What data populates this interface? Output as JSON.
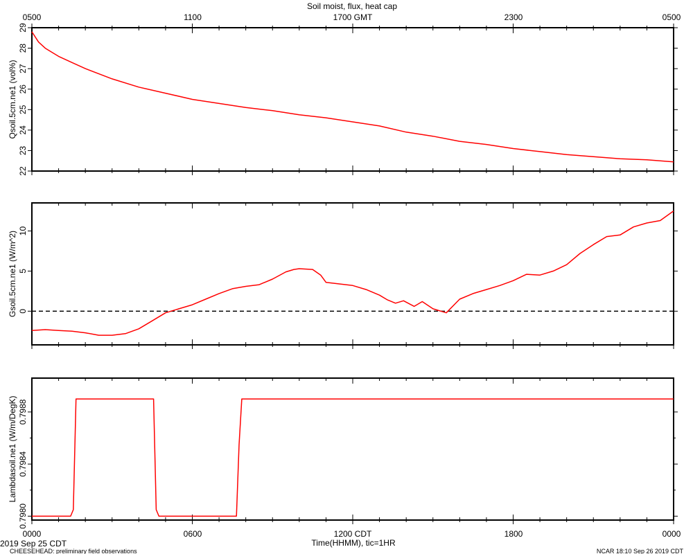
{
  "title": "Soil moist, flux, heat cap",
  "top_axis": {
    "ticks": [
      "0500",
      "1100",
      "1700 GMT",
      "2300",
      "0500"
    ]
  },
  "bottom_axis": {
    "ticks": [
      "0000",
      "0600",
      "1200 CDT",
      "1800",
      "0000"
    ],
    "xlabel": "Time(HHMM), tic=1HR"
  },
  "footer": {
    "date": "2019 Sep 25 CDT",
    "project": "CHEESEHEAD: preliminary field observations",
    "credit": "NCAR 18:10 Sep 26 2019 CDT"
  },
  "colors": {
    "series": "#ff0000",
    "axis": "#000000",
    "zero_line": "#000000"
  },
  "chart_data": [
    {
      "type": "line",
      "ylabel": "Qsoil.5cm.ne1 (vol%)",
      "ylim": [
        22,
        29
      ],
      "yticks": [
        22,
        23,
        24,
        25,
        26,
        27,
        28,
        29
      ],
      "ytick_labels": [
        "22",
        "23",
        "24",
        "25",
        "26",
        "27",
        "28",
        "29"
      ],
      "x_hours": [
        0,
        0.25,
        0.5,
        0.75,
        1,
        1.5,
        2,
        3,
        4,
        5,
        6,
        7,
        8,
        9,
        10,
        11,
        12,
        13,
        14,
        15,
        16,
        17,
        18,
        19,
        20,
        21,
        22,
        23,
        24
      ],
      "values": [
        28.8,
        28.3,
        28.0,
        27.8,
        27.6,
        27.3,
        27.0,
        26.5,
        26.1,
        25.8,
        25.5,
        25.3,
        25.1,
        24.95,
        24.75,
        24.6,
        24.4,
        24.2,
        23.9,
        23.7,
        23.45,
        23.3,
        23.1,
        22.95,
        22.8,
        22.7,
        22.6,
        22.55,
        22.45
      ]
    },
    {
      "type": "line",
      "ylabel": "Gsoil.5cm.ne1 (W/m^2)",
      "ylim": [
        -4.2,
        13.5
      ],
      "yticks": [
        0,
        5,
        10
      ],
      "ytick_labels": [
        "0",
        "5",
        "10"
      ],
      "reference_line": 0,
      "x_hours": [
        0,
        0.5,
        1,
        1.5,
        2,
        2.5,
        3,
        3.5,
        4,
        4.5,
        5,
        5.5,
        6,
        6.5,
        7,
        7.5,
        8,
        8.5,
        9,
        9.5,
        9.8,
        10,
        10.5,
        10.8,
        11,
        11.5,
        12,
        12.5,
        13,
        13.3,
        13.6,
        13.9,
        14.3,
        14.6,
        15,
        15.5,
        16,
        16.5,
        17,
        17.5,
        18,
        18.5,
        19,
        19.5,
        20,
        20.5,
        21,
        21.5,
        22,
        22.5,
        23,
        23.5,
        24
      ],
      "values": [
        -2.4,
        -2.3,
        -2.4,
        -2.5,
        -2.7,
        -3.0,
        -3.0,
        -2.8,
        -2.2,
        -1.2,
        -0.2,
        0.3,
        0.8,
        1.5,
        2.2,
        2.8,
        3.1,
        3.3,
        4.0,
        4.9,
        5.2,
        5.3,
        5.2,
        4.5,
        3.6,
        3.4,
        3.2,
        2.7,
        2.0,
        1.4,
        1.0,
        1.3,
        0.6,
        1.2,
        0.3,
        -0.2,
        1.5,
        2.2,
        2.7,
        3.2,
        3.8,
        4.6,
        4.5,
        5.0,
        5.8,
        7.2,
        8.3,
        9.3,
        9.5,
        10.5,
        11.0,
        11.3,
        12.5
      ]
    },
    {
      "type": "line",
      "ylabel": "Lambdasoil.ne1 (W/m/DegK)",
      "ylim": [
        0.79797,
        0.79906
      ],
      "yticks": [
        0.798,
        0.7984,
        0.7988
      ],
      "ytick_labels": [
        "0.7980",
        "0.7984",
        "0.7988"
      ],
      "x_hours": [
        0,
        1.45,
        1.55,
        1.65,
        4.55,
        4.65,
        4.75,
        7.65,
        7.75,
        7.85,
        24
      ],
      "values": [
        0.798,
        0.798,
        0.79805,
        0.7989,
        0.7989,
        0.79805,
        0.798,
        0.798,
        0.79855,
        0.7989,
        0.7989
      ]
    }
  ]
}
